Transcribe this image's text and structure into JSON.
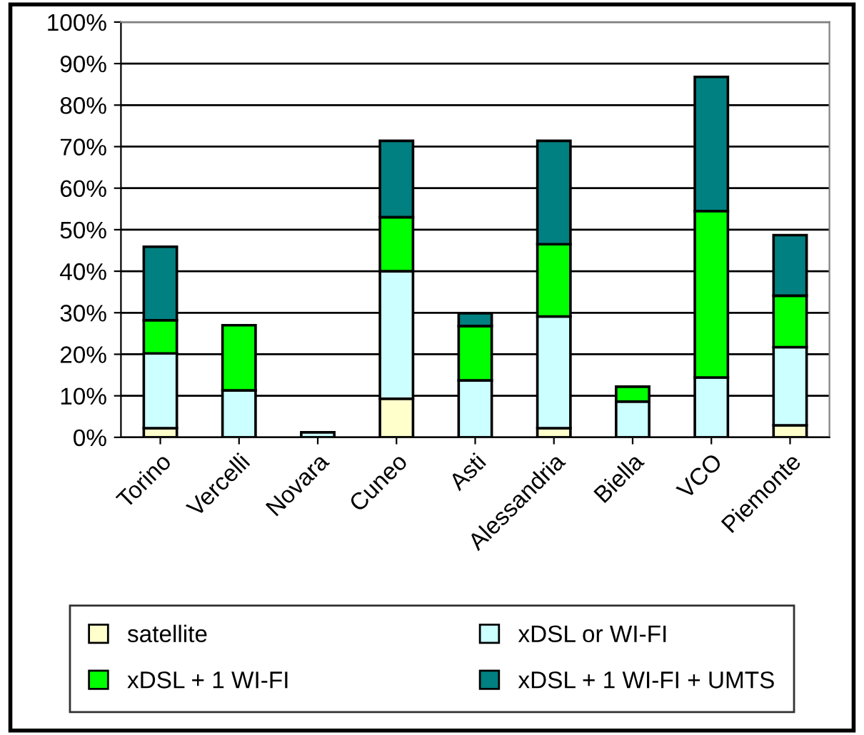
{
  "chart_data": {
    "type": "bar",
    "stacked": true,
    "categories": [
      "Torino",
      "Vercelli",
      "Novara",
      "Cuneo",
      "Asti",
      "Alessandria",
      "Biella",
      "VCO",
      "Piemonte"
    ],
    "series": [
      {
        "name": "satellite",
        "color": "#ffffcc",
        "values": [
          2.2,
          0,
          0,
          9.3,
          0,
          2.2,
          0,
          0,
          2.9
        ]
      },
      {
        "name": "xDSL or WI-FI",
        "color": "#ccffff",
        "values": [
          18,
          11.3,
          1.2,
          30.7,
          13.7,
          26.9,
          8.6,
          14.4,
          18.8
        ]
      },
      {
        "name": "xDSL + 1 WI-FI",
        "color": "#00ff00",
        "values": [
          8,
          15.7,
          0,
          13,
          13.1,
          17.4,
          3.6,
          40.1,
          12.4
        ]
      },
      {
        "name": "xDSL + 1 WI-FI + UMTS",
        "color": "#008080",
        "values": [
          17.7,
          0,
          0,
          18.4,
          3.1,
          24.9,
          0,
          32.3,
          14.6
        ]
      }
    ],
    "ylim": [
      0,
      100
    ],
    "yticks": [
      {
        "value": 0,
        "label": "0%"
      },
      {
        "value": 10,
        "label": "10%"
      },
      {
        "value": 20,
        "label": "20%"
      },
      {
        "value": 30,
        "label": "30%"
      },
      {
        "value": 40,
        "label": "40%"
      },
      {
        "value": 50,
        "label": "50%"
      },
      {
        "value": 60,
        "label": "60%"
      },
      {
        "value": 70,
        "label": "70%"
      },
      {
        "value": 80,
        "label": "80%"
      },
      {
        "value": 90,
        "label": "90%"
      },
      {
        "value": 100,
        "label": "100%"
      }
    ],
    "grid": "y",
    "legend": "bottom"
  }
}
